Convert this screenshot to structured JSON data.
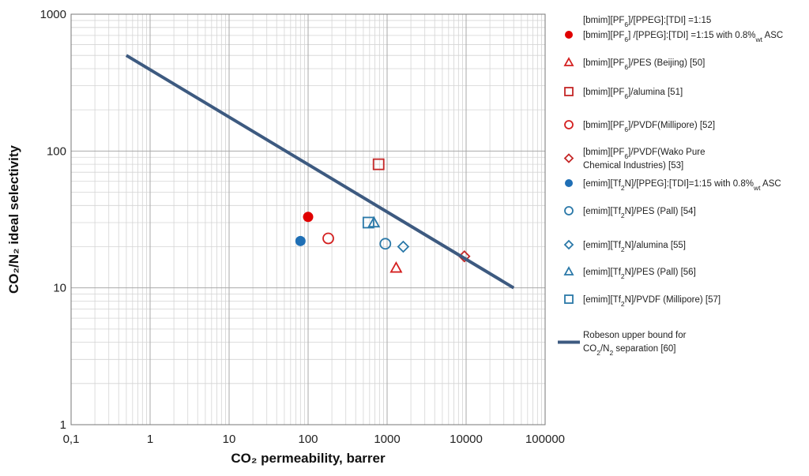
{
  "chart_data": {
    "type": "scatter",
    "xlabel": "CO₂ permeability,  barrer",
    "ylabel": "CO₂/N₂ ideal selectivity",
    "xscale": "log",
    "yscale": "log",
    "xlim": [
      0.1,
      100000
    ],
    "ylim": [
      1,
      1000
    ],
    "x_tick_labels": [
      "0,1",
      "1",
      "10",
      "100",
      "1000",
      "10000",
      "100000"
    ],
    "y_tick_labels": [
      "1",
      "10",
      "100",
      "1000"
    ],
    "grid": true,
    "legend_position": "right",
    "series": [
      {
        "name": "[bmim][PF6]/[PPEG]:[TDI] =1:15",
        "marker": "none",
        "color": "#e00000",
        "points": []
      },
      {
        "name": "[bmim][PF6] /[PPEG]:[TDI] =1:15 with 0.8%wt ASC",
        "marker": "filled-circle",
        "color": "#e00000",
        "points": [
          [
            100,
            33
          ]
        ]
      },
      {
        "name": "[bmim][PF6]/PES (Beijing) [50]",
        "marker": "triangle",
        "color": "#d42020",
        "points": [
          [
            1300,
            14
          ]
        ]
      },
      {
        "name": "[bmim][PF6]/alumina [51]",
        "marker": "square",
        "color": "#c42626",
        "points": [
          [
            780,
            80
          ]
        ]
      },
      {
        "name": "[bmim][PF6]/PVDF(Millipore) [52]",
        "marker": "circle",
        "color": "#d42020",
        "points": [
          [
            180,
            23
          ]
        ]
      },
      {
        "name": "[bmim][PF6]/PVDF(Wako Pure Chemical Industries) [53]",
        "marker": "diamond",
        "color": "#c42626",
        "points": [
          [
            9500,
            17
          ]
        ]
      },
      {
        "name": "[emim][Tf2N]/[PPEG]:[TDI]=1:15 with 0.8%wt ASC",
        "marker": "filled-circle",
        "color": "#1f6fb5",
        "points": [
          [
            80,
            22
          ]
        ]
      },
      {
        "name": "[emim][Tf2N]/PES (Pall) [54]",
        "marker": "circle",
        "color": "#2a78a8",
        "points": [
          [
            950,
            21
          ]
        ]
      },
      {
        "name": "[emim][Tf2N]/alumina [55]",
        "marker": "diamond",
        "color": "#2a78a8",
        "points": [
          [
            1600,
            20
          ]
        ]
      },
      {
        "name": "[emim][Tf2N]/PES (Pall) [56]",
        "marker": "triangle",
        "color": "#2a78a8",
        "points": [
          [
            680,
            30
          ]
        ]
      },
      {
        "name": "[emim][Tf2N]/PVDF (Millipore) [57]",
        "marker": "square",
        "color": "#2a78a8",
        "points": [
          [
            580,
            30
          ]
        ]
      },
      {
        "name": "Robeson upper bound for CO2/N2 separation [60]",
        "marker": "line",
        "color": "#3d5a80",
        "points": [
          [
            0.5,
            500
          ],
          [
            40000,
            10
          ]
        ]
      }
    ]
  },
  "legend": [
    {
      "lines": [
        [
          "[bmim][PF",
          "6",
          "]/[PPEG]:[TDI] =1:15"
        ]
      ]
    },
    {
      "lines": [
        [
          "[bmim][PF",
          "6",
          "] /[PPEG]:[TDI] =1:15 with 0.8%",
          "wt",
          " ASC"
        ]
      ]
    },
    {
      "lines": [
        [
          "[bmim][PF",
          "6",
          "]/PES (Beijing) [50]"
        ]
      ]
    },
    {
      "lines": [
        [
          "[bmim][PF",
          "6",
          "]/alumina [51]"
        ]
      ]
    },
    {
      "lines": [
        [
          "[bmim][PF",
          "6",
          "]/PVDF(Millipore) [52]"
        ]
      ]
    },
    {
      "lines": [
        [
          "[bmim][PF",
          "6",
          "]/PVDF(Wako Pure"
        ],
        [
          "Chemical Industries) [53]"
        ]
      ]
    },
    {
      "lines": [
        [
          "[emim][Tf",
          "2",
          "N]/[PPEG]:[TDI]=1:15 with 0.8%",
          "wt",
          " ASC"
        ]
      ]
    },
    {
      "lines": [
        [
          "[emim][Tf",
          "2",
          "N]/PES (Pall) [54]"
        ]
      ]
    },
    {
      "lines": [
        [
          "[emim][Tf",
          "2",
          "N]/alumina [55]"
        ]
      ]
    },
    {
      "lines": [
        [
          "[emim][Tf",
          "2",
          "N]/PES (Pall) [56]"
        ]
      ]
    },
    {
      "lines": [
        [
          "[emim][Tf",
          "2",
          "N]/PVDF (Millipore) [57]"
        ]
      ]
    },
    {
      "lines": [
        [
          "Robeson upper bound for"
        ],
        [
          "CO",
          "2",
          "/N",
          "2",
          " separation [60]"
        ]
      ]
    }
  ]
}
